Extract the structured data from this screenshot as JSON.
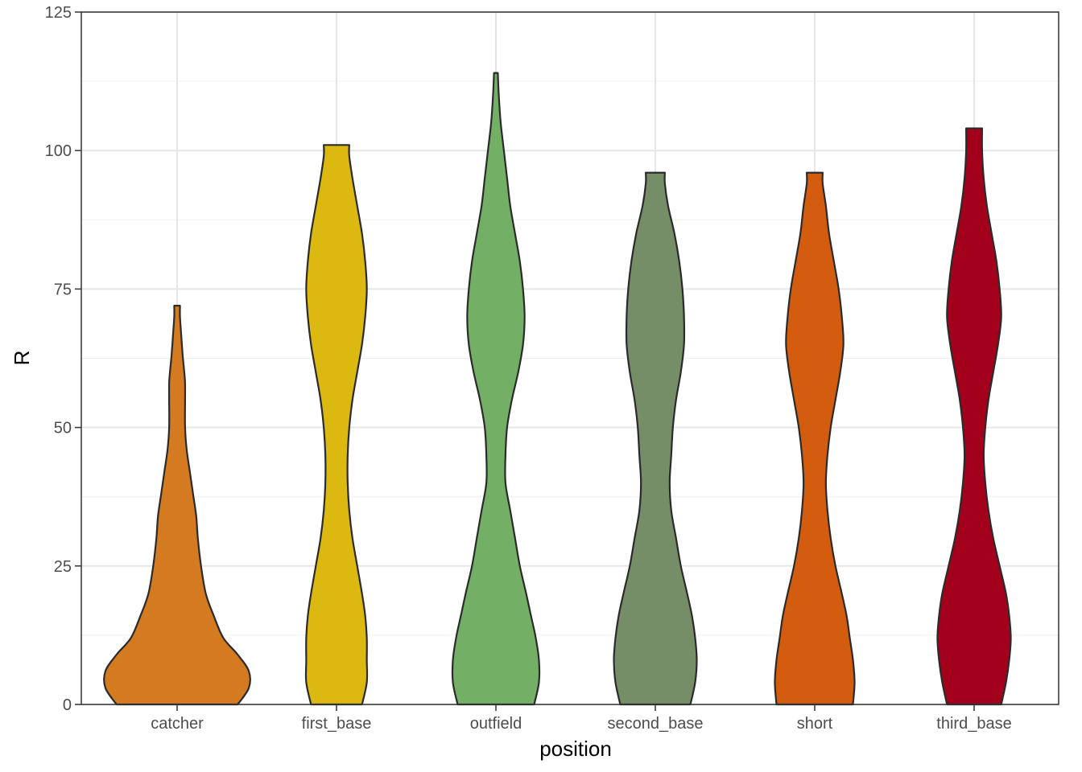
{
  "chart_data": {
    "type": "violin",
    "title": "",
    "xlabel": "position",
    "ylabel": "R",
    "ylim": [
      0,
      125
    ],
    "yticks": [
      0,
      25,
      50,
      75,
      100,
      125
    ],
    "ytick_labels": [
      "0",
      "25",
      "50",
      "75",
      "100",
      "125"
    ],
    "minor_gridlines": [
      12.5,
      37.5,
      62.5,
      87.5,
      112.5
    ],
    "grid": true,
    "theme": "bw",
    "legend": "none",
    "categories": [
      "catcher",
      "first_base",
      "outfield",
      "second_base",
      "short",
      "third_base"
    ],
    "series": [
      {
        "name": "catcher",
        "color": "#D47A21",
        "min": 0,
        "max": 72,
        "half_width": [
          [
            0,
            0.38
          ],
          [
            3,
            0.45
          ],
          [
            6,
            0.45
          ],
          [
            9,
            0.38
          ],
          [
            12,
            0.29
          ],
          [
            16,
            0.23
          ],
          [
            20,
            0.18
          ],
          [
            25,
            0.15
          ],
          [
            30,
            0.13
          ],
          [
            34,
            0.12
          ],
          [
            38,
            0.1
          ],
          [
            42,
            0.08
          ],
          [
            46,
            0.06
          ],
          [
            50,
            0.05
          ],
          [
            55,
            0.05
          ],
          [
            58,
            0.05
          ],
          [
            60,
            0.045
          ],
          [
            63,
            0.035
          ],
          [
            67,
            0.025
          ],
          [
            70,
            0.018
          ],
          [
            72,
            0.018
          ]
        ]
      },
      {
        "name": "first_base",
        "color": "#DBB910",
        "min": 0,
        "max": 101,
        "half_width": [
          [
            0,
            0.16
          ],
          [
            4,
            0.19
          ],
          [
            8,
            0.19
          ],
          [
            12,
            0.19
          ],
          [
            16,
            0.18
          ],
          [
            20,
            0.16
          ],
          [
            25,
            0.13
          ],
          [
            30,
            0.1
          ],
          [
            35,
            0.08
          ],
          [
            40,
            0.07
          ],
          [
            45,
            0.07
          ],
          [
            50,
            0.08
          ],
          [
            55,
            0.1
          ],
          [
            60,
            0.13
          ],
          [
            65,
            0.16
          ],
          [
            70,
            0.18
          ],
          [
            75,
            0.19
          ],
          [
            80,
            0.18
          ],
          [
            85,
            0.16
          ],
          [
            90,
            0.13
          ],
          [
            95,
            0.1
          ],
          [
            99,
            0.08
          ],
          [
            101,
            0.08
          ]
        ]
      },
      {
        "name": "outfield",
        "color": "#73B066",
        "min": 0,
        "max": 114,
        "half_width": [
          [
            0,
            0.24
          ],
          [
            4,
            0.27
          ],
          [
            8,
            0.27
          ],
          [
            12,
            0.25
          ],
          [
            16,
            0.22
          ],
          [
            20,
            0.19
          ],
          [
            25,
            0.15
          ],
          [
            30,
            0.12
          ],
          [
            35,
            0.09
          ],
          [
            40,
            0.06
          ],
          [
            45,
            0.06
          ],
          [
            50,
            0.07
          ],
          [
            55,
            0.1
          ],
          [
            60,
            0.14
          ],
          [
            65,
            0.17
          ],
          [
            70,
            0.18
          ],
          [
            75,
            0.17
          ],
          [
            80,
            0.15
          ],
          [
            85,
            0.12
          ],
          [
            90,
            0.09
          ],
          [
            95,
            0.07
          ],
          [
            100,
            0.05
          ],
          [
            105,
            0.03
          ],
          [
            110,
            0.018
          ],
          [
            114,
            0.012
          ]
        ]
      },
      {
        "name": "second_base",
        "color": "#758E68",
        "min": 0,
        "max": 96,
        "half_width": [
          [
            0,
            0.22
          ],
          [
            4,
            0.25
          ],
          [
            8,
            0.26
          ],
          [
            12,
            0.25
          ],
          [
            16,
            0.23
          ],
          [
            20,
            0.2
          ],
          [
            25,
            0.16
          ],
          [
            30,
            0.13
          ],
          [
            35,
            0.1
          ],
          [
            40,
            0.09
          ],
          [
            45,
            0.1
          ],
          [
            50,
            0.11
          ],
          [
            55,
            0.13
          ],
          [
            60,
            0.16
          ],
          [
            65,
            0.18
          ],
          [
            70,
            0.18
          ],
          [
            75,
            0.17
          ],
          [
            80,
            0.15
          ],
          [
            85,
            0.12
          ],
          [
            90,
            0.08
          ],
          [
            94,
            0.06
          ],
          [
            96,
            0.06
          ]
        ]
      },
      {
        "name": "short",
        "color": "#D35C0E",
        "min": 0,
        "max": 96,
        "half_width": [
          [
            0,
            0.24
          ],
          [
            4,
            0.25
          ],
          [
            8,
            0.24
          ],
          [
            12,
            0.22
          ],
          [
            16,
            0.2
          ],
          [
            20,
            0.17
          ],
          [
            25,
            0.13
          ],
          [
            30,
            0.1
          ],
          [
            35,
            0.08
          ],
          [
            40,
            0.07
          ],
          [
            45,
            0.08
          ],
          [
            50,
            0.1
          ],
          [
            55,
            0.13
          ],
          [
            60,
            0.16
          ],
          [
            65,
            0.18
          ],
          [
            70,
            0.17
          ],
          [
            75,
            0.15
          ],
          [
            80,
            0.12
          ],
          [
            85,
            0.09
          ],
          [
            90,
            0.07
          ],
          [
            94,
            0.05
          ],
          [
            96,
            0.05
          ]
        ]
      },
      {
        "name": "third_base",
        "color": "#A3001C",
        "min": 0,
        "max": 104,
        "half_width": [
          [
            0,
            0.17
          ],
          [
            4,
            0.2
          ],
          [
            8,
            0.22
          ],
          [
            12,
            0.23
          ],
          [
            16,
            0.22
          ],
          [
            20,
            0.2
          ],
          [
            25,
            0.16
          ],
          [
            30,
            0.12
          ],
          [
            35,
            0.09
          ],
          [
            40,
            0.07
          ],
          [
            45,
            0.06
          ],
          [
            50,
            0.07
          ],
          [
            55,
            0.09
          ],
          [
            60,
            0.12
          ],
          [
            65,
            0.15
          ],
          [
            70,
            0.17
          ],
          [
            75,
            0.16
          ],
          [
            80,
            0.14
          ],
          [
            85,
            0.11
          ],
          [
            90,
            0.08
          ],
          [
            95,
            0.06
          ],
          [
            100,
            0.05
          ],
          [
            104,
            0.05
          ]
        ]
      }
    ]
  }
}
